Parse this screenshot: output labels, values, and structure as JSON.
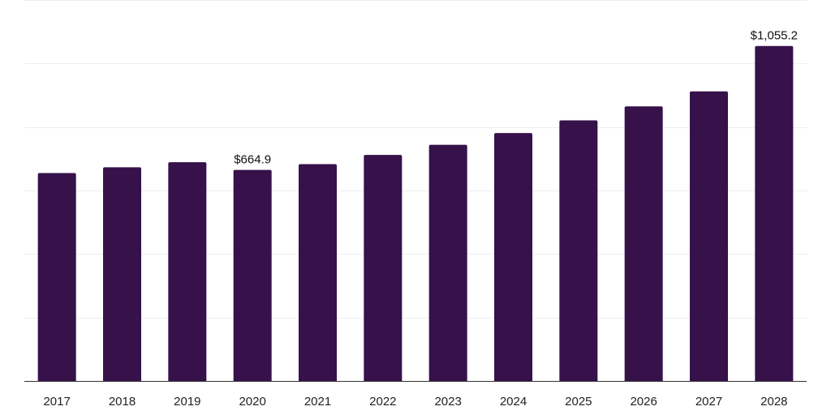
{
  "chart_data": {
    "type": "bar",
    "categories": [
      "2017",
      "2018",
      "2019",
      "2020",
      "2021",
      "2022",
      "2023",
      "2024",
      "2025",
      "2026",
      "2027",
      "2028"
    ],
    "values": [
      655,
      673,
      689,
      664.9,
      683,
      712,
      744,
      781,
      821,
      865,
      912,
      1055.2
    ],
    "data_labels": {
      "2020": "$664.9",
      "2028": "$1,055.2"
    },
    "bar_color": "#36114a",
    "ylim": [
      0,
      1200
    ],
    "grid": true,
    "title": "",
    "xlabel": "",
    "ylabel": ""
  }
}
